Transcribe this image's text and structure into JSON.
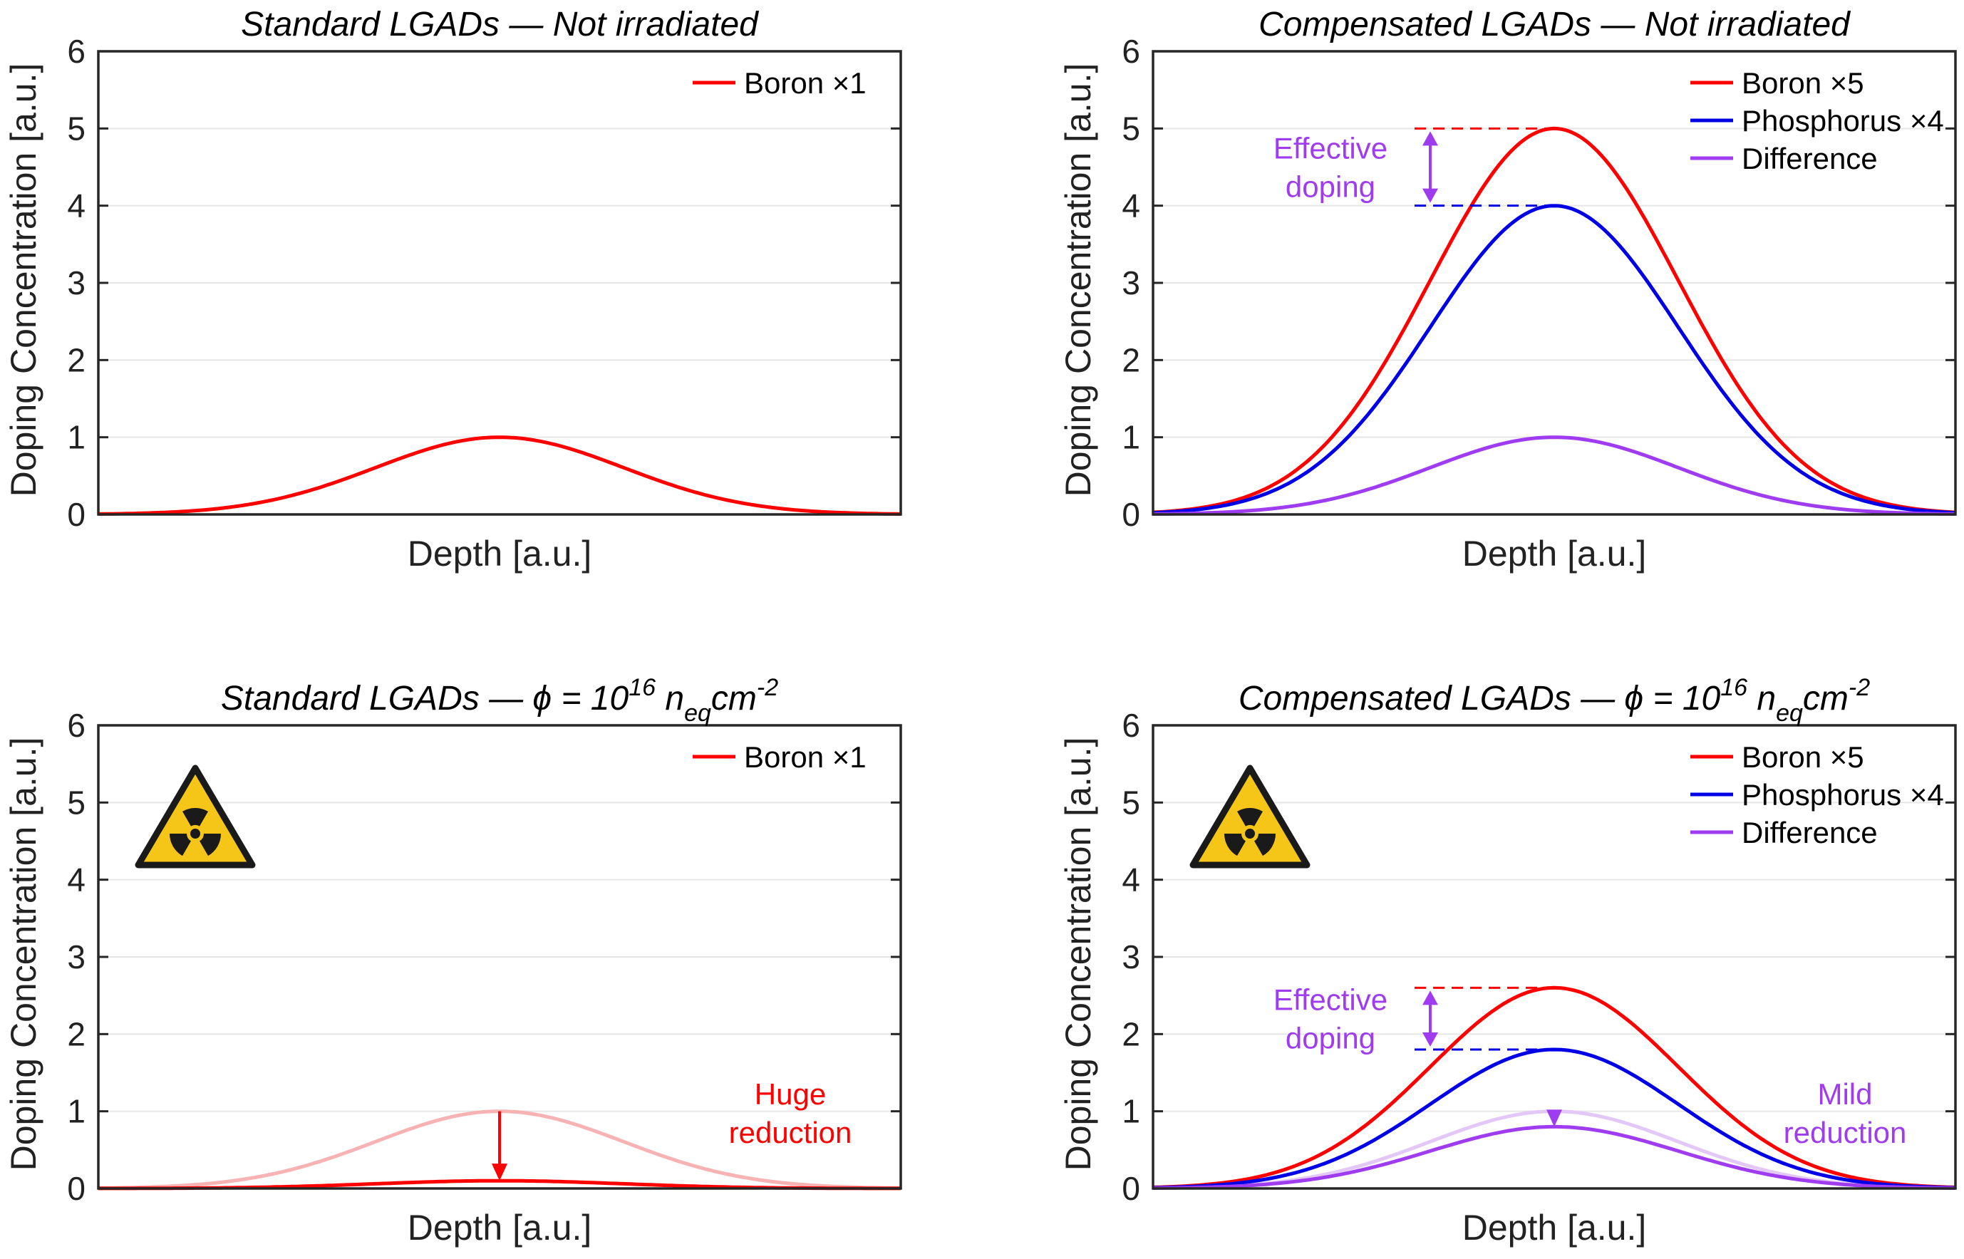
{
  "figure": {
    "colors": {
      "boron": "#ff0000",
      "phosphorus": "#0000e6",
      "difference": "#a03cf0",
      "boron_faded": "#f7b3b3",
      "difference_faded": "#e3c8f7",
      "grid": "#e6e6e6",
      "hazard_yellow": "#f5c518"
    }
  },
  "chart_data": [
    {
      "type": "line",
      "title": "Standard LGADs — Not irradiated",
      "xlabel": "Depth [a.u.]",
      "ylabel": "Doping Concentration [a.u.]",
      "ylim": [
        0,
        6
      ],
      "yticks": [
        "0",
        "1",
        "2",
        "3",
        "4",
        "5",
        "6"
      ],
      "grid": true,
      "legend_position": "top-right",
      "legend": [
        "Boron ×1"
      ],
      "hazard_icon": false,
      "series": [
        {
          "name": "Boron ×1",
          "peak": 1,
          "color": "boron",
          "in_legend": true
        }
      ],
      "annotations": []
    },
    {
      "type": "line",
      "title": "Compensated LGADs — Not irradiated",
      "xlabel": "Depth [a.u.]",
      "ylabel": "Doping Concentration [a.u.]",
      "ylim": [
        0,
        6
      ],
      "yticks": [
        "0",
        "1",
        "2",
        "3",
        "4",
        "5",
        "6"
      ],
      "grid": true,
      "legend_position": "top-right",
      "legend": [
        "Boron ×5",
        "Phosphorus ×4",
        "Difference"
      ],
      "hazard_icon": false,
      "series": [
        {
          "name": "Boron ×5",
          "peak": 5,
          "color": "boron",
          "in_legend": true
        },
        {
          "name": "Phosphorus ×4",
          "peak": 4,
          "color": "phosphorus",
          "in_legend": true
        },
        {
          "name": "Difference",
          "peak": 1,
          "color": "difference",
          "in_legend": true
        }
      ],
      "annotations": [
        {
          "kind": "bracket",
          "lines": [
            "Effective",
            "doping"
          ],
          "top": 5,
          "bottom": 4,
          "color": "difference"
        }
      ]
    },
    {
      "type": "line",
      "title": "Standard LGADs — ϕ = 10",
      "title_superscript": "16",
      "title_n": " n",
      "title_subscript": "eq",
      "title_unit": "cm",
      "title_unit_superscript": "-2",
      "xlabel": "Depth [a.u.]",
      "ylabel": "Doping Concentration [a.u.]",
      "ylim": [
        0,
        6
      ],
      "yticks": [
        "0",
        "1",
        "2",
        "3",
        "4",
        "5",
        "6"
      ],
      "grid": true,
      "legend_position": "top-right",
      "legend": [
        "Boron ×1"
      ],
      "hazard_icon": true,
      "series": [
        {
          "name": "Boron ×1 (before irradiation)",
          "peak": 1,
          "color": "boron_faded",
          "in_legend": false
        },
        {
          "name": "Boron ×1",
          "peak": 0.1,
          "color": "boron",
          "in_legend": true
        }
      ],
      "annotations": [
        {
          "kind": "reduction",
          "lines": [
            "Huge",
            "reduction"
          ],
          "from": 1,
          "to": 0.1,
          "color": "boron"
        }
      ]
    },
    {
      "type": "line",
      "title": "Compensated LGADs — ϕ = 10",
      "title_superscript": "16",
      "title_n": " n",
      "title_subscript": "eq",
      "title_unit": "cm",
      "title_unit_superscript": "-2",
      "xlabel": "Depth [a.u.]",
      "ylabel": "Doping Concentration [a.u.]",
      "ylim": [
        0,
        6
      ],
      "yticks": [
        "0",
        "1",
        "2",
        "3",
        "4",
        "5",
        "6"
      ],
      "grid": true,
      "legend_position": "top-right",
      "legend": [
        "Boron ×5",
        "Phosphorus ×4",
        "Difference"
      ],
      "hazard_icon": true,
      "series": [
        {
          "name": "Difference (before irradiation)",
          "peak": 1,
          "color": "difference_faded",
          "in_legend": false
        },
        {
          "name": "Boron ×5",
          "peak": 2.6,
          "color": "boron",
          "in_legend": true
        },
        {
          "name": "Phosphorus ×4",
          "peak": 1.8,
          "color": "phosphorus",
          "in_legend": true
        },
        {
          "name": "Difference",
          "peak": 0.8,
          "color": "difference",
          "in_legend": true
        }
      ],
      "annotations": [
        {
          "kind": "bracket",
          "lines": [
            "Effective",
            "doping"
          ],
          "top": 2.6,
          "bottom": 1.8,
          "color": "difference"
        },
        {
          "kind": "reduction",
          "lines": [
            "Mild",
            "reduction"
          ],
          "from": 1,
          "to": 0.8,
          "color": "difference"
        }
      ]
    }
  ]
}
